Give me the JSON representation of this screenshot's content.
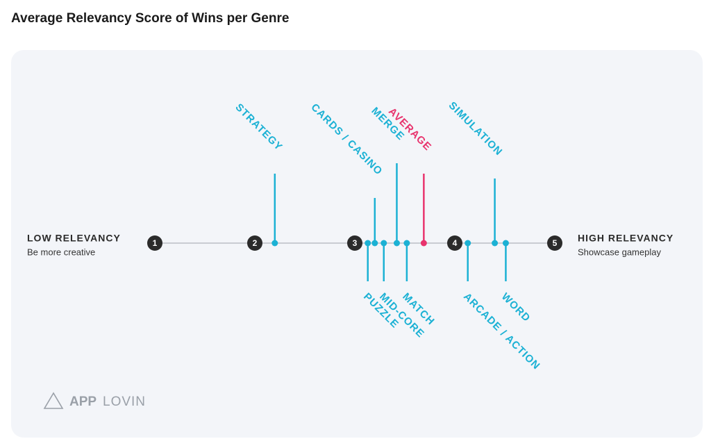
{
  "chart_data": {
    "type": "relevancy-line",
    "title": "Average Relevancy Score of Wins per Genre",
    "low_label": "LOW RELEVANCY",
    "low_sublabel": "Be more creative",
    "high_label": "HIGH RELEVANCY",
    "high_sublabel": "Showcase gameplay",
    "xlim": [
      1,
      5
    ],
    "xticks": [
      1,
      2,
      3,
      4,
      5
    ],
    "categories": [
      "STRATEGY",
      "PUZZLE",
      "CARDS / CASINO",
      "MID-CORE",
      "MERGE",
      "MATCH",
      "AVERAGE",
      "ARCADE / ACTION",
      "SIMULATION",
      "WORD"
    ],
    "values": [
      2.2,
      3.13,
      3.2,
      3.29,
      3.42,
      3.52,
      3.69,
      4.13,
      4.4,
      4.51
    ],
    "sides": [
      "above",
      "below",
      "above",
      "below",
      "above",
      "below",
      "above",
      "below",
      "above",
      "below"
    ],
    "colors": [
      "#1bb1d4",
      "#1bb1d4",
      "#1bb1d4",
      "#1bb1d4",
      "#1bb1d4",
      "#1bb1d4",
      "#e8336d",
      "#1bb1d4",
      "#1bb1d4",
      "#1bb1d4"
    ],
    "logo_bold": "APP",
    "logo_light": "LOVIN"
  }
}
